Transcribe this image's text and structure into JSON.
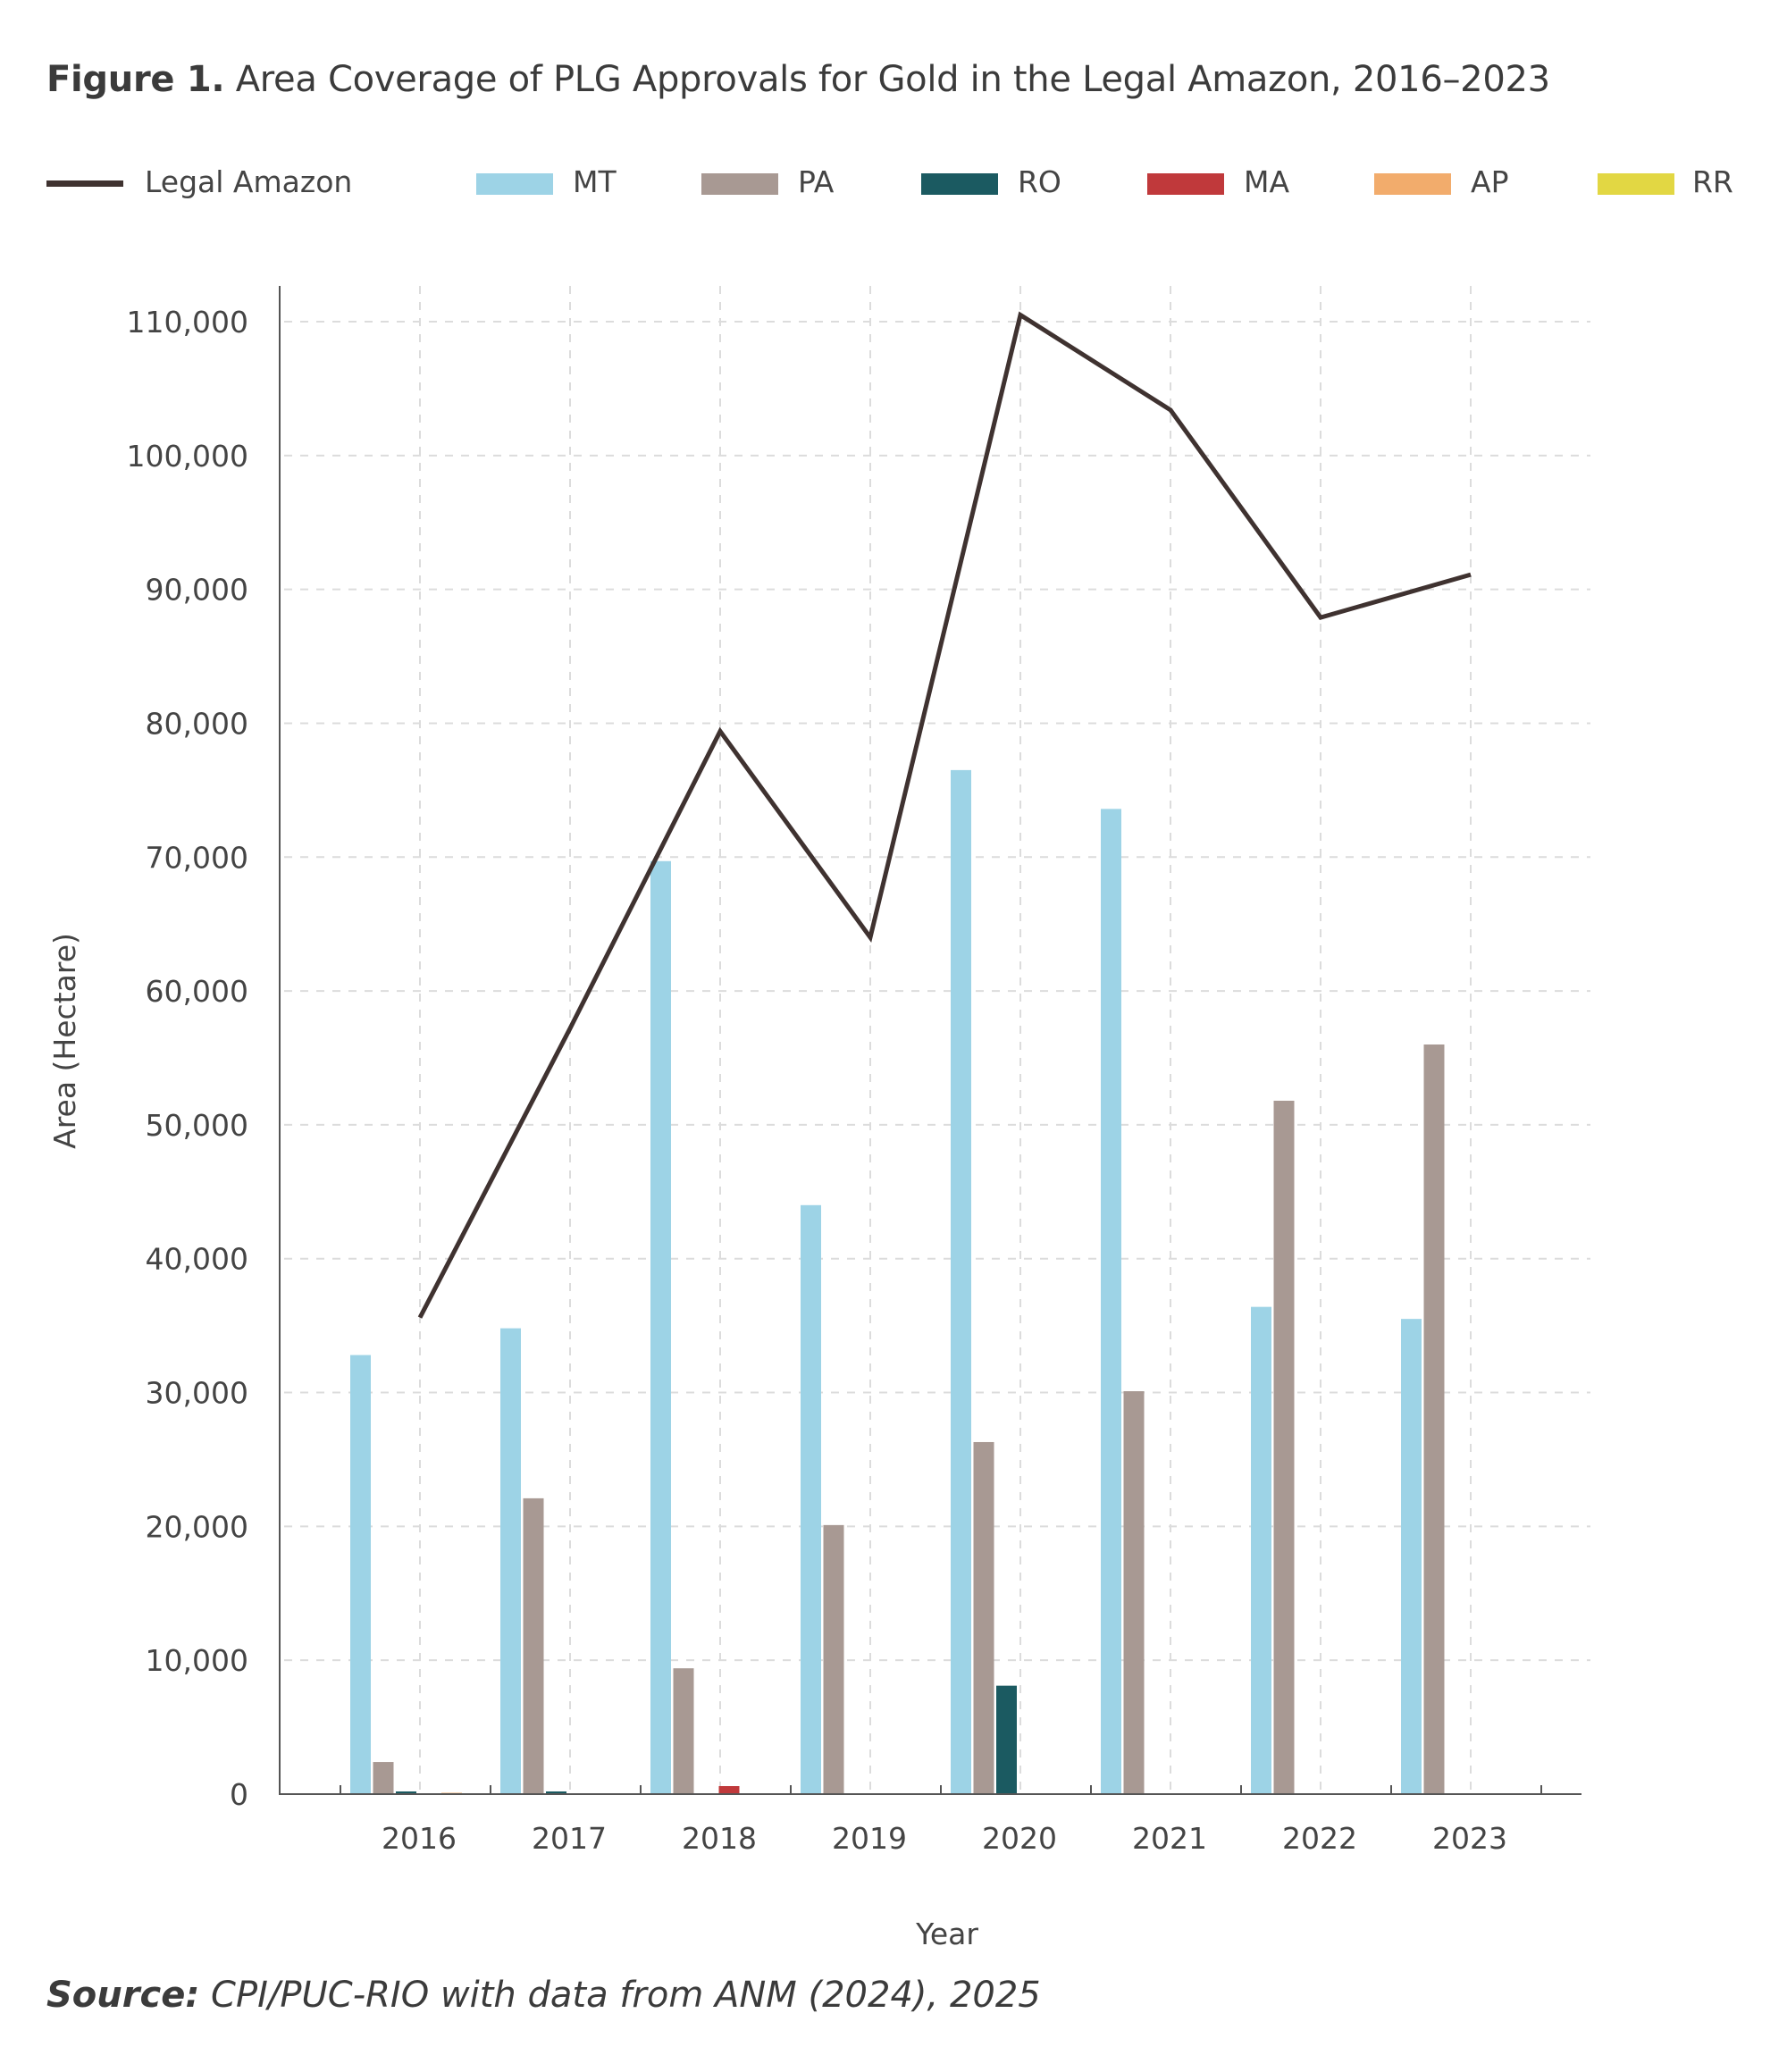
{
  "figure": {
    "label": "Figure 1.",
    "title": "Area Coverage of PLG Approvals for Gold in the Legal Amazon, 2016–2023"
  },
  "source": {
    "label": "Source:",
    "text": "CPI/PUC-RIO with data from ANM (2024), 2025"
  },
  "legend": [
    {
      "name": "Legal Amazon",
      "kind": "line",
      "color": "#3f3230"
    },
    {
      "name": "MT",
      "kind": "bar",
      "color": "#9dd3e6"
    },
    {
      "name": "PA",
      "kind": "bar",
      "color": "#a89993"
    },
    {
      "name": "RO",
      "kind": "bar",
      "color": "#1b5a61"
    },
    {
      "name": "MA",
      "kind": "bar",
      "color": "#c0393b"
    },
    {
      "name": "AP",
      "kind": "bar",
      "color": "#f2ac6c"
    },
    {
      "name": "RR",
      "kind": "bar",
      "color": "#e2d743"
    }
  ],
  "chart_data": {
    "type": "bar",
    "title": "Area Coverage of PLG Approvals for Gold in the Legal Amazon, 2016–2023",
    "xlabel": "Year",
    "ylabel": "Area (Hectare)",
    "categories": [
      "2016",
      "2017",
      "2018",
      "2019",
      "2020",
      "2021",
      "2022",
      "2023"
    ],
    "ylim": [
      0,
      110000
    ],
    "yticks": [
      0,
      10000,
      20000,
      30000,
      40000,
      50000,
      60000,
      70000,
      80000,
      90000,
      100000,
      110000
    ],
    "ytick_labels": [
      "0",
      "10,000",
      "20,000",
      "30,000",
      "40,000",
      "50,000",
      "60,000",
      "70,000",
      "80,000",
      "90,000",
      "100,000",
      "110,000"
    ],
    "grid": true,
    "legend_position": "top",
    "series": [
      {
        "name": "MT",
        "type": "bar",
        "color": "#9dd3e6",
        "values": [
          32800,
          34800,
          69700,
          44000,
          76500,
          73600,
          36400,
          35500
        ]
      },
      {
        "name": "PA",
        "type": "bar",
        "color": "#a89993",
        "values": [
          2400,
          22100,
          9400,
          20100,
          26300,
          30100,
          51800,
          56000
        ]
      },
      {
        "name": "RO",
        "type": "bar",
        "color": "#1b5a61",
        "values": [
          200,
          200,
          0,
          0,
          8100,
          0,
          0,
          0
        ]
      },
      {
        "name": "MA",
        "type": "bar",
        "color": "#c0393b",
        "values": [
          0,
          0,
          600,
          0,
          0,
          0,
          0,
          0
        ]
      },
      {
        "name": "AP",
        "type": "bar",
        "color": "#f2ac6c",
        "values": [
          100,
          0,
          0,
          0,
          0,
          0,
          0,
          0
        ]
      },
      {
        "name": "RR",
        "type": "bar",
        "color": "#e2d743",
        "values": [
          0,
          0,
          0,
          0,
          0,
          0,
          0,
          0
        ]
      },
      {
        "name": "Legal Amazon",
        "type": "line",
        "color": "#3f3230",
        "values": [
          35600,
          57200,
          79400,
          64000,
          110500,
          103400,
          87900,
          91100
        ]
      }
    ]
  }
}
